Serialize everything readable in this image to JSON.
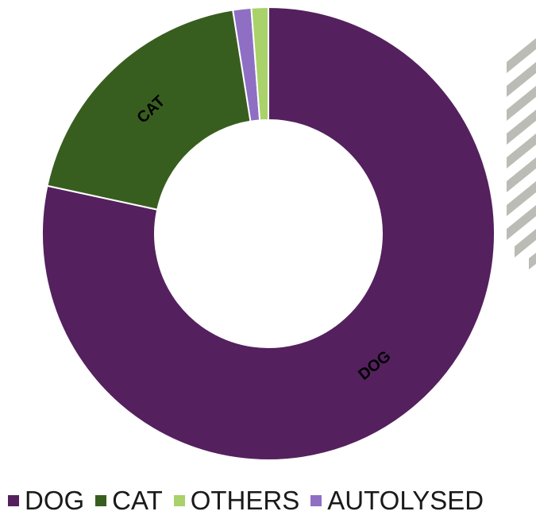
{
  "chart_data": {
    "type": "pie",
    "style": "donut",
    "categories": [
      "DOG",
      "CAT",
      "OTHERS",
      "AUTOLYSED"
    ],
    "values": [
      78,
      19,
      1.2,
      1.3
    ],
    "units": "percent (estimated)",
    "order_clockwise_from_top": [
      "DOG",
      "CAT",
      "AUTOLYSED",
      "OTHERS"
    ],
    "slice_labels": {
      "DOG": "DOG",
      "CAT": "CAT"
    },
    "colors": {
      "DOG": "#54205e",
      "CAT": "#385e1f",
      "OTHERS": "#a9d26a",
      "AUTOLYSED": "#8f6fc4"
    },
    "legend": {
      "placement": "bottom",
      "entries": [
        "DOG",
        "CAT",
        "OTHERS",
        "AUTOLYSED"
      ]
    },
    "title": ""
  }
}
